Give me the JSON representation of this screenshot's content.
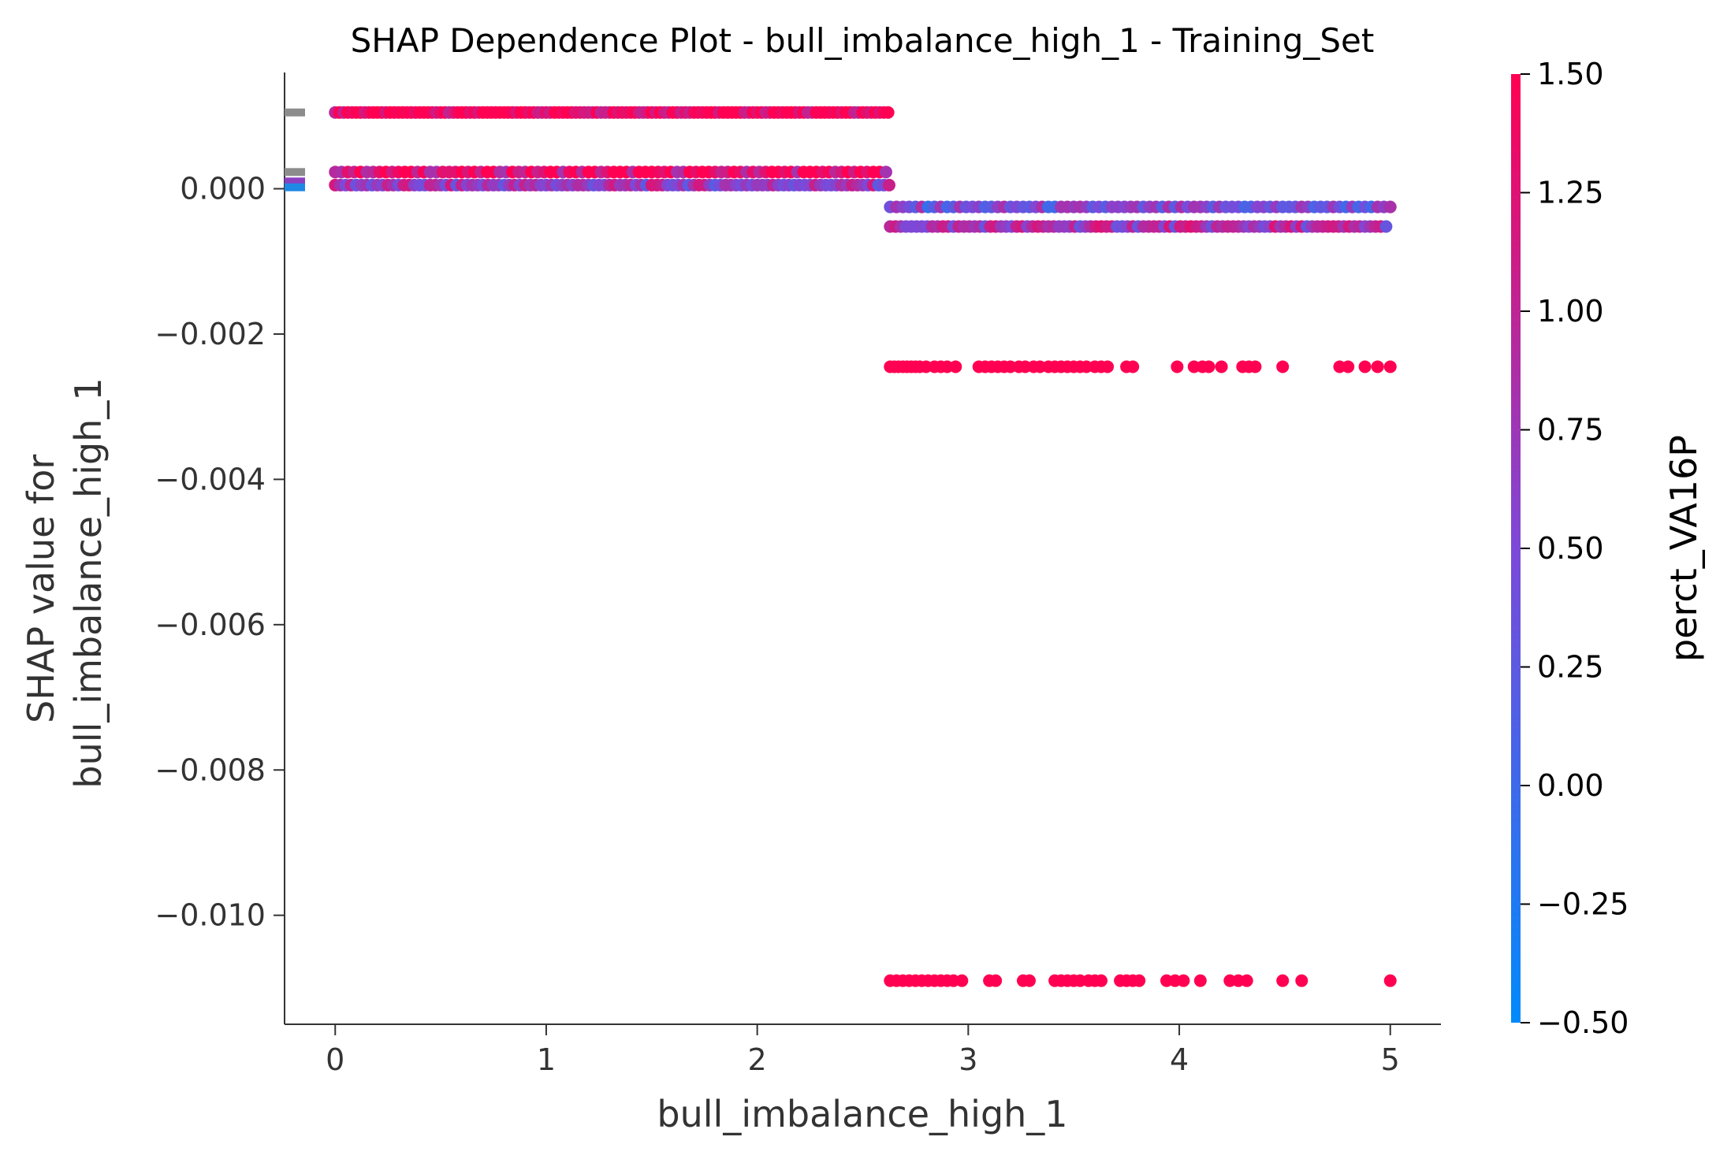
{
  "chart_data": {
    "type": "scatter",
    "title": "SHAP Dependence Plot - bull_imbalance_high_1 - Training_Set",
    "xlabel": "bull_imbalance_high_1",
    "ylabel_line1": "SHAP value for",
    "ylabel_line2": "bull_imbalance_high_1",
    "xlim": [
      -0.24,
      5.24
    ],
    "ylim": [
      -0.0115,
      0.0016
    ],
    "x_ticks": [
      0,
      1,
      2,
      3,
      4,
      5
    ],
    "x_tick_labels": [
      "0",
      "1",
      "2",
      "3",
      "4",
      "5"
    ],
    "y_ticks": [
      0.0,
      -0.002,
      -0.004,
      -0.006,
      -0.008,
      -0.01
    ],
    "y_tick_labels": [
      "0.000",
      "−0.002",
      "−0.004",
      "−0.006",
      "−0.008",
      "−0.010"
    ],
    "grid": false,
    "colorbar": {
      "label": "perct_VA16P",
      "range": [
        -0.5,
        1.5
      ],
      "ticks": [
        1.5,
        1.25,
        1.0,
        0.75,
        0.5,
        0.25,
        0.0,
        -0.25,
        -0.5
      ],
      "tick_labels": [
        "1.50",
        "1.25",
        "1.00",
        "0.75",
        "0.50",
        "0.25",
        "0.00",
        "−0.25",
        "−0.50"
      ],
      "color_low": "#008afb",
      "color_mid": "#7c49d9",
      "color_high": "#ff0052"
    },
    "missing_markers": [
      {
        "y": 0.00105,
        "color": "#8c8c8c"
      },
      {
        "y": 0.00023,
        "color": "#8c8c8c"
      },
      {
        "y": 0.0001,
        "color": "#8a3fc0"
      },
      {
        "y": 2e-05,
        "color": "#1e88e5"
      }
    ],
    "series": [
      {
        "y": 0.00105,
        "x_from": 0.0,
        "x_to": 2.63,
        "step": 0.02,
        "color_value": 1.5
      },
      {
        "y": 0.00023,
        "x_from": 0.0,
        "x_to": 2.63,
        "step": 0.03,
        "color_value": 1.3
      },
      {
        "y": 5e-05,
        "x_from": 0.0,
        "x_to": 2.63,
        "step": 0.025,
        "color_value": 0.7
      },
      {
        "y": -0.00025,
        "x_from": 2.63,
        "x_to": 5.0,
        "step": 0.03,
        "color_value": 0.4
      },
      {
        "y": -0.00052,
        "x_from": 2.63,
        "x_to": 5.0,
        "step": 0.025,
        "color_value": 0.8
      },
      {
        "y": -0.00245,
        "x": [
          2.63,
          2.65,
          2.67,
          2.69,
          2.71,
          2.73,
          2.75,
          2.77,
          2.8,
          2.84,
          2.87,
          2.9,
          2.94,
          3.05,
          3.08,
          3.11,
          3.14,
          3.17,
          3.2,
          3.24,
          3.27,
          3.31,
          3.34,
          3.38,
          3.41,
          3.44,
          3.47,
          3.5,
          3.53,
          3.56,
          3.6,
          3.63,
          3.66,
          3.75,
          3.78,
          3.99,
          4.07,
          4.11,
          4.14,
          4.2,
          4.3,
          4.33,
          4.36,
          4.49,
          4.76,
          4.8,
          4.88,
          4.94,
          5.0
        ],
        "color_value": 1.5
      },
      {
        "y": -0.0109,
        "x": [
          2.63,
          2.66,
          2.69,
          2.72,
          2.75,
          2.78,
          2.81,
          2.84,
          2.87,
          2.9,
          2.93,
          2.97,
          3.1,
          3.13,
          3.26,
          3.29,
          3.41,
          3.44,
          3.47,
          3.5,
          3.53,
          3.57,
          3.6,
          3.63,
          3.72,
          3.75,
          3.78,
          3.81,
          3.94,
          3.98,
          4.02,
          4.1,
          4.24,
          4.28,
          4.32,
          4.49,
          4.58,
          5.0
        ],
        "color_value": 1.5
      }
    ]
  }
}
